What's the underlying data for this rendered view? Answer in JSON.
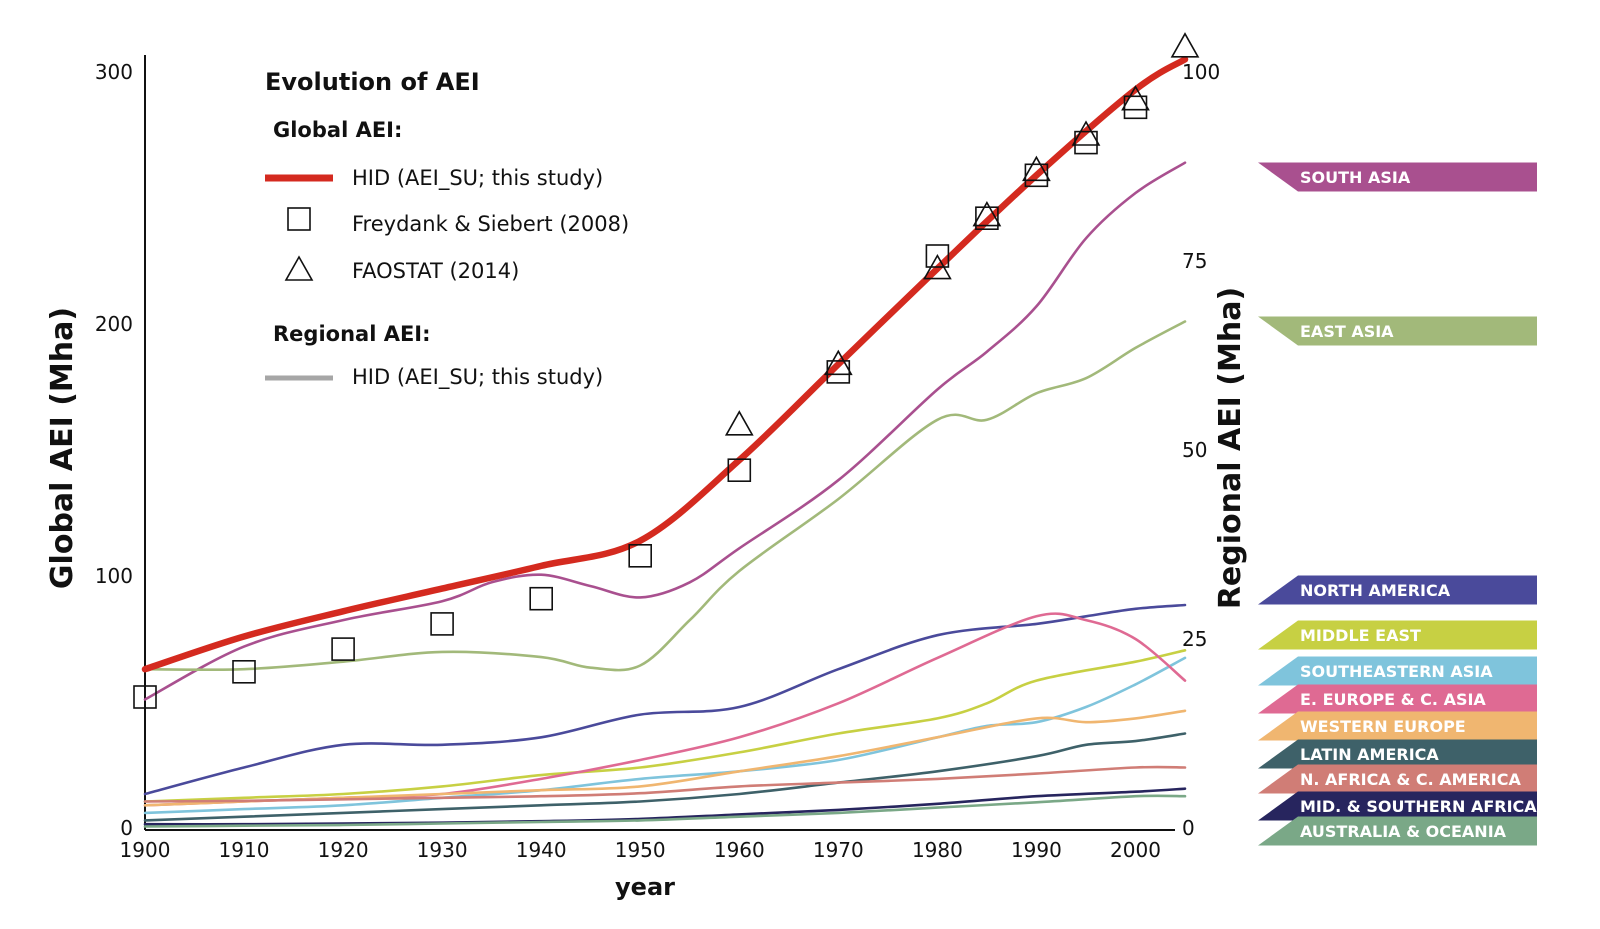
{
  "chart_data": {
    "type": "line",
    "title": "Evolution of AEI",
    "xlabel": "year",
    "ylabel": "Global AEI (Mha)",
    "y2label": "Regional AEI (Mha)",
    "xlim": [
      1900,
      2005
    ],
    "ylim": [
      0,
      305
    ],
    "y2lim": [
      0,
      101.7
    ],
    "x_ticks": [
      1900,
      1910,
      1920,
      1930,
      1940,
      1950,
      1960,
      1970,
      1980,
      1990,
      2000
    ],
    "y_ticks": [
      0,
      100,
      200,
      300
    ],
    "y2_ticks": [
      0,
      25,
      50,
      75,
      100
    ],
    "legend": {
      "global_heading": "Global AEI:",
      "global_entries": [
        "HID (AEI_SU; this study)",
        "Freydank & Siebert (2008)",
        "FAOSTAT (2014)"
      ],
      "regional_heading": "Regional AEI:",
      "regional_entries": [
        "HID (AEI_SU; this study)"
      ]
    },
    "global_series": [
      {
        "name": "HID (AEI_SU; this study)",
        "color": "#d42a1f",
        "x": [
          1900,
          1910,
          1920,
          1930,
          1940,
          1950,
          1960,
          1970,
          1980,
          1990,
          2000,
          2005
        ],
        "values": [
          63,
          76,
          86,
          95,
          104,
          114,
          146,
          184,
          222,
          259,
          293,
          305
        ]
      },
      {
        "name": "Freydank & Siebert (2008)",
        "marker": "square",
        "x": [
          1900,
          1910,
          1920,
          1930,
          1940,
          1950,
          1960,
          1970,
          1980,
          1985,
          1990,
          1995,
          2000
        ],
        "values": [
          52,
          62,
          71,
          81,
          91,
          108,
          142,
          181,
          227,
          242,
          259,
          272,
          286
        ]
      },
      {
        "name": "FAOSTAT (2014)",
        "marker": "triangle",
        "x": [
          1960,
          1970,
          1980,
          1985,
          1990,
          1995,
          2000,
          2005
        ],
        "values": [
          160,
          184,
          222,
          243,
          261,
          275,
          289,
          310
        ]
      }
    ],
    "regional_series": [
      {
        "name": "SOUTH ASIA",
        "color": "#a9508f",
        "x": [
          1900,
          1910,
          1920,
          1930,
          1935,
          1940,
          1945,
          1950,
          1955,
          1960,
          1970,
          1980,
          1985,
          1990,
          1995,
          2000,
          2005
        ],
        "values": [
          17,
          24,
          27.5,
          30,
          32.5,
          33.5,
          32,
          30.5,
          32.5,
          37,
          46,
          58,
          63,
          69,
          78,
          84,
          88
        ]
      },
      {
        "name": "EAST ASIA",
        "color": "#a2b97a",
        "x": [
          1900,
          1910,
          1920,
          1930,
          1940,
          1945,
          1950,
          1955,
          1960,
          1970,
          1980,
          1985,
          1990,
          1995,
          2000,
          2005
        ],
        "values": [
          21,
          21,
          22,
          23.3,
          22.6,
          21.2,
          21.5,
          27.5,
          34,
          43.5,
          54,
          54,
          57.5,
          59.5,
          63.5,
          67
        ]
      },
      {
        "name": "NORTH AMERICA",
        "color": "#4a4a9b",
        "x": [
          1900,
          1910,
          1920,
          1930,
          1940,
          1950,
          1960,
          1970,
          1980,
          1990,
          1995,
          2000,
          2005
        ],
        "values": [
          4.5,
          8,
          11,
          11,
          12,
          15,
          16,
          21,
          25.5,
          27,
          28,
          29,
          29.5
        ]
      },
      {
        "name": "MIDDLE EAST",
        "color": "#c7d043",
        "x": [
          1900,
          1910,
          1920,
          1930,
          1940,
          1950,
          1960,
          1970,
          1980,
          1985,
          1990,
          2000,
          2005
        ],
        "values": [
          3.5,
          4,
          4.5,
          5.5,
          7,
          8,
          10,
          12.5,
          14.5,
          16.5,
          19.5,
          22,
          23.5
        ]
      },
      {
        "name": "SOUTHEASTERN ASIA",
        "color": "#7fc4dc",
        "x": [
          1900,
          1910,
          1920,
          1930,
          1940,
          1950,
          1960,
          1970,
          1980,
          1985,
          1990,
          1995,
          2000,
          2005
        ],
        "values": [
          2,
          2.5,
          3,
          4,
          5,
          6.5,
          7.5,
          9,
          12,
          13.5,
          14,
          16,
          19,
          22.5
        ]
      },
      {
        "name": "E. EUROPE & C. ASIA",
        "color": "#df6a93",
        "x": [
          1900,
          1910,
          1920,
          1930,
          1940,
          1950,
          1960,
          1970,
          1980,
          1990,
          1995,
          2000,
          2005
        ],
        "values": [
          3,
          3.5,
          4,
          4.5,
          6.5,
          9,
          12,
          16.5,
          22.5,
          28,
          27.5,
          25,
          19.5
        ]
      },
      {
        "name": "WESTERN EUROPE",
        "color": "#f0b670",
        "x": [
          1900,
          1910,
          1920,
          1930,
          1940,
          1950,
          1960,
          1970,
          1980,
          1990,
          1995,
          2000,
          2005
        ],
        "values": [
          3,
          3.5,
          4,
          4.5,
          5,
          5.5,
          7.5,
          9.5,
          12,
          14.5,
          14,
          14.5,
          15.5
        ]
      },
      {
        "name": "LATIN AMERICA",
        "color": "#3e6169",
        "x": [
          1900,
          1910,
          1920,
          1930,
          1940,
          1950,
          1960,
          1970,
          1980,
          1990,
          1995,
          2000,
          2005
        ],
        "values": [
          1,
          1.5,
          2,
          2.5,
          3,
          3.5,
          4.5,
          6,
          7.5,
          9.5,
          11,
          11.5,
          12.5
        ]
      },
      {
        "name": "N. AFRICA & C. AMERICA",
        "color": "#d07d76",
        "x": [
          1900,
          1910,
          1920,
          1930,
          1940,
          1950,
          1960,
          1970,
          1980,
          1990,
          2000,
          2005
        ],
        "values": [
          3.5,
          3.6,
          3.8,
          4,
          4.2,
          4.6,
          5.5,
          6,
          6.5,
          7.2,
          8,
          8
        ]
      },
      {
        "name": "MID. & SOUTHERN AFRICA",
        "color": "#27255e",
        "x": [
          1900,
          1910,
          1920,
          1930,
          1940,
          1950,
          1960,
          1970,
          1980,
          1990,
          2000,
          2005
        ],
        "values": [
          0.5,
          0.5,
          0.6,
          0.7,
          0.9,
          1.2,
          1.8,
          2.4,
          3.2,
          4.2,
          4.8,
          5.2
        ]
      },
      {
        "name": "AUSTRALIA & OCEANIA",
        "color": "#7aa887",
        "x": [
          1900,
          1910,
          1920,
          1930,
          1940,
          1950,
          1960,
          1970,
          1980,
          1990,
          2000,
          2005
        ],
        "values": [
          0.2,
          0.3,
          0.4,
          0.6,
          0.8,
          1,
          1.5,
          2,
          2.7,
          3.4,
          4.2,
          4.2
        ]
      }
    ]
  }
}
